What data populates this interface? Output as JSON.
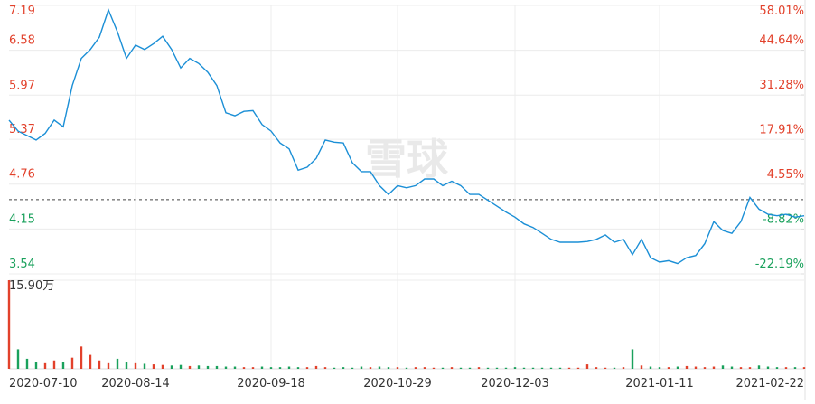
{
  "chart_data": {
    "type": "line",
    "watermark": "雪球",
    "categories": [
      "2020-07-10",
      null,
      null,
      null,
      null,
      null,
      null,
      null,
      null,
      null,
      null,
      null,
      null,
      null,
      "2020-08-14",
      null,
      null,
      null,
      null,
      null,
      null,
      null,
      null,
      null,
      null,
      null,
      null,
      null,
      null,
      "2020-09-18",
      null,
      null,
      null,
      null,
      null,
      null,
      null,
      null,
      null,
      null,
      null,
      null,
      null,
      "2020-10-29",
      null,
      null,
      null,
      null,
      null,
      null,
      null,
      null,
      null,
      null,
      null,
      null,
      "2020-12-03",
      null,
      null,
      null,
      null,
      null,
      null,
      null,
      null,
      null,
      null,
      null,
      null,
      null,
      null,
      null,
      "2021-01-11",
      null,
      null,
      null,
      null,
      null,
      null,
      null,
      null,
      null,
      null,
      null,
      null,
      null,
      null,
      null,
      "2021-02-22"
    ],
    "series": [
      {
        "name": "price",
        "color": "#1b8fd6",
        "values": [
          5.63,
          5.48,
          5.42,
          5.36,
          5.45,
          5.63,
          5.54,
          6.1,
          6.47,
          6.59,
          6.76,
          7.13,
          6.83,
          6.47,
          6.65,
          6.59,
          6.67,
          6.77,
          6.59,
          6.34,
          6.47,
          6.4,
          6.28,
          6.1,
          5.73,
          5.69,
          5.75,
          5.76,
          5.57,
          5.48,
          5.32,
          5.24,
          4.95,
          4.99,
          5.11,
          5.36,
          5.33,
          5.32,
          5.05,
          4.93,
          4.93,
          4.74,
          4.62,
          4.74,
          4.71,
          4.74,
          4.83,
          4.83,
          4.74,
          4.8,
          4.74,
          4.62,
          4.62,
          4.54,
          4.46,
          4.38,
          4.31,
          4.22,
          4.17,
          4.09,
          4.01,
          3.97,
          3.97,
          3.97,
          3.98,
          4.01,
          4.07,
          3.97,
          4.01,
          3.8,
          4.01,
          3.76,
          3.7,
          3.72,
          3.68,
          3.76,
          3.79,
          3.95,
          4.25,
          4.13,
          4.09,
          4.25,
          4.58,
          4.42,
          4.35,
          4.33,
          4.35,
          4.31,
          4.33
        ]
      },
      {
        "name": "volume",
        "values": [
          15.9,
          3.5,
          1.8,
          1.2,
          1.0,
          1.5,
          1.2,
          2.0,
          4.0,
          2.5,
          1.5,
          1.0,
          1.8,
          1.2,
          1.0,
          0.9,
          0.8,
          0.7,
          0.6,
          0.7,
          0.5,
          0.6,
          0.5,
          0.5,
          0.4,
          0.4,
          0.3,
          0.3,
          0.4,
          0.3,
          0.3,
          0.4,
          0.3,
          0.3,
          0.5,
          0.3,
          0.2,
          0.3,
          0.2,
          0.4,
          0.3,
          0.4,
          0.3,
          0.3,
          0.2,
          0.3,
          0.3,
          0.2,
          0.2,
          0.3,
          0.2,
          0.2,
          0.3,
          0.2,
          0.2,
          0.2,
          0.3,
          0.2,
          0.2,
          0.2,
          0.2,
          0.2,
          0.2,
          0.2,
          0.8,
          0.3,
          0.2,
          0.2,
          0.3,
          3.5,
          0.6,
          0.4,
          0.3,
          0.3,
          0.4,
          0.5,
          0.4,
          0.3,
          0.4,
          0.6,
          0.4,
          0.3,
          0.3,
          0.6,
          0.4,
          0.3,
          0.3,
          0.3,
          0.3
        ]
      }
    ],
    "ylim": [
      3.54,
      7.19
    ],
    "yticks": [
      7.19,
      6.58,
      5.97,
      5.37,
      4.76,
      4.15,
      3.54
    ],
    "y2lim": [
      -22.19,
      58.01
    ],
    "y2ticks": [
      {
        "value": 58.01,
        "label": "58.01%"
      },
      {
        "value": 44.64,
        "label": "44.64%"
      },
      {
        "value": 31.28,
        "label": "31.28%"
      },
      {
        "value": 17.91,
        "label": "17.91%"
      },
      {
        "value": 4.55,
        "label": "4.55%"
      },
      {
        "value": -8.82,
        "label": "-8.82%"
      },
      {
        "value": -22.19,
        "label": "-22.19%"
      }
    ],
    "vlim": [
      0,
      15.9
    ],
    "vticks": [
      {
        "value": 15.9,
        "label": "15.90万"
      }
    ],
    "up_color": "#e2412b",
    "down_color": "#1aa15c",
    "grid": true
  }
}
